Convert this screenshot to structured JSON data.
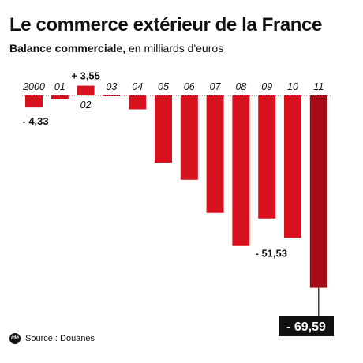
{
  "header": {
    "title": "Le commerce extérieur de la France",
    "subtitle_bold": "Balance commerciale,",
    "subtitle_rest": " en milliards d'euros"
  },
  "footer": {
    "logo_text": "idé",
    "source": "Source : Douanes"
  },
  "colors": {
    "bar": "#d7121e",
    "bar_last": "#a50c16",
    "value_box_bg": "#111111",
    "value_box_fg": "#ffffff"
  },
  "chart_data": {
    "type": "bar",
    "title": "Le commerce extérieur de la France",
    "subtitle": "Balance commerciale, en milliards d'euros",
    "xlabel": "",
    "ylabel": "",
    "categories": [
      "2000",
      "01",
      "02",
      "03",
      "04",
      "05",
      "06",
      "07",
      "08",
      "09",
      "10",
      "11"
    ],
    "values": [
      -4.33,
      -1.3,
      3.55,
      -0.2,
      -5.0,
      -24.3,
      -30.5,
      -42.5,
      -54.5,
      -44.5,
      -51.53,
      -69.59
    ],
    "labels": [
      "- 4,33",
      "",
      "+ 3,55",
      "",
      "",
      "",
      "",
      "",
      "",
      "",
      "- 51,53",
      "- 69,59"
    ],
    "ylim": [
      -72,
      5
    ],
    "grid": false,
    "legend": "none"
  }
}
